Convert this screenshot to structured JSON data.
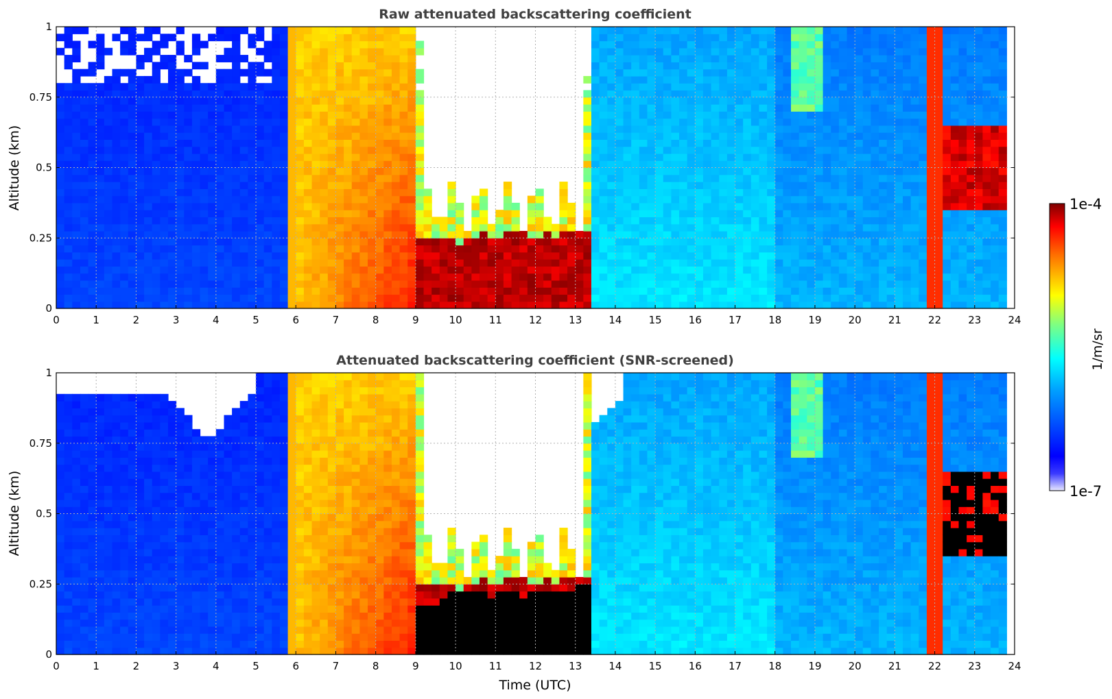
{
  "chart_data": [
    {
      "type": "heatmap",
      "title": "Raw attenuated backscattering coefficient",
      "xlabel": "",
      "ylabel": "Altitude (km)",
      "xlim": [
        0,
        24
      ],
      "ylim": [
        0,
        1
      ],
      "x_ticks": [
        "0",
        "1",
        "2",
        "3",
        "4",
        "5",
        "6",
        "7",
        "8",
        "9",
        "10",
        "11",
        "12",
        "13",
        "14",
        "15",
        "16",
        "17",
        "18",
        "19",
        "20",
        "21",
        "22",
        "23",
        "24"
      ],
      "y_ticks": [
        "0",
        "0.25",
        "0.5",
        "0.75",
        "1"
      ],
      "grid": true,
      "colormap": "jet",
      "color_scale": "log",
      "features": [
        {
          "time_start": 6.0,
          "time_end": 9.0,
          "alt_top": 1.0,
          "level": 0.78
        },
        {
          "time_start": 9.0,
          "time_end": 13.3,
          "alt_top": 0.28,
          "level": 0.97
        },
        {
          "time_start": 13.3,
          "time_end": 23.8,
          "alt_top": 1.0,
          "level": 0.38
        },
        {
          "time_start": 21.8,
          "time_end": 22.2,
          "alt_top": 1.0,
          "level": 0.85
        },
        {
          "time_start": 22.3,
          "time_end": 23.8,
          "alt_top": 0.7,
          "level": 0.95
        }
      ]
    },
    {
      "type": "heatmap",
      "title": "Attenuated backscattering coefficient (SNR-screened)",
      "xlabel": "Time (UTC)",
      "ylabel": "Altitude (km)",
      "xlim": [
        0,
        24
      ],
      "ylim": [
        0,
        1
      ],
      "x_ticks": [
        "0",
        "1",
        "2",
        "3",
        "4",
        "5",
        "6",
        "7",
        "8",
        "9",
        "10",
        "11",
        "12",
        "13",
        "14",
        "15",
        "16",
        "17",
        "18",
        "19",
        "20",
        "21",
        "22",
        "23",
        "24"
      ],
      "y_ticks": [
        "0",
        "0.25",
        "0.5",
        "0.75",
        "1"
      ],
      "grid": true,
      "colormap": "jet",
      "color_scale": "log",
      "features": [
        {
          "time_start": 6.0,
          "time_end": 9.0,
          "alt_top": 1.0,
          "level": 0.78
        },
        {
          "time_start": 9.0,
          "time_end": 13.3,
          "alt_top": 0.28,
          "level": 1.0,
          "saturated": true
        },
        {
          "time_start": 13.3,
          "time_end": 23.8,
          "alt_top": 1.0,
          "level": 0.38
        },
        {
          "time_start": 22.3,
          "time_end": 23.8,
          "alt_top": 0.7,
          "level": 1.0,
          "saturated": true
        }
      ]
    }
  ],
  "colorbar": {
    "label": "1/m/sr",
    "max_label": "1e-4",
    "min_label": "1e-7",
    "range": [
      1e-07,
      0.0001
    ],
    "scale": "log",
    "colormap": "jet",
    "low_color": "#f2f2ff"
  },
  "colors": {
    "title": "#404040",
    "grid": "#b0b0b0",
    "saturated": "#000000",
    "missing": "#ffffff"
  }
}
